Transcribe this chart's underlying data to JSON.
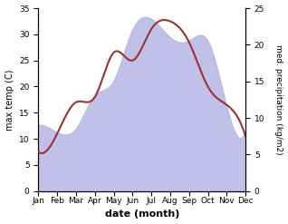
{
  "months": [
    "Jan",
    "Feb",
    "Mar",
    "Apr",
    "May",
    "Jun",
    "Jul",
    "Aug",
    "Sep",
    "Oct",
    "Nov",
    "Dec"
  ],
  "temp": [
    7.5,
    11.0,
    17.0,
    18.0,
    26.5,
    25.0,
    31.0,
    32.5,
    28.5,
    20.0,
    16.5,
    10.5
  ],
  "precip": [
    9.0,
    8.0,
    8.5,
    13.0,
    15.0,
    22.0,
    23.5,
    21.0,
    20.5,
    20.5,
    11.5,
    8.0
  ],
  "temp_color": "#993333",
  "precip_fill_color": "#c0c0e8",
  "precip_edge_color": "#b0b0dd",
  "ylabel_left": "max temp (C)",
  "ylabel_right": "med. precipitation (kg/m2)",
  "xlabel": "date (month)",
  "ylim_left": [
    0,
    35
  ],
  "ylim_right": [
    0,
    25
  ],
  "yticks_left": [
    0,
    5,
    10,
    15,
    20,
    25,
    30,
    35
  ],
  "yticks_right": [
    0,
    5,
    10,
    15,
    20,
    25
  ],
  "bg_color": "#ffffff",
  "title_fontsize": 8,
  "label_fontsize": 7,
  "tick_fontsize": 6.5
}
